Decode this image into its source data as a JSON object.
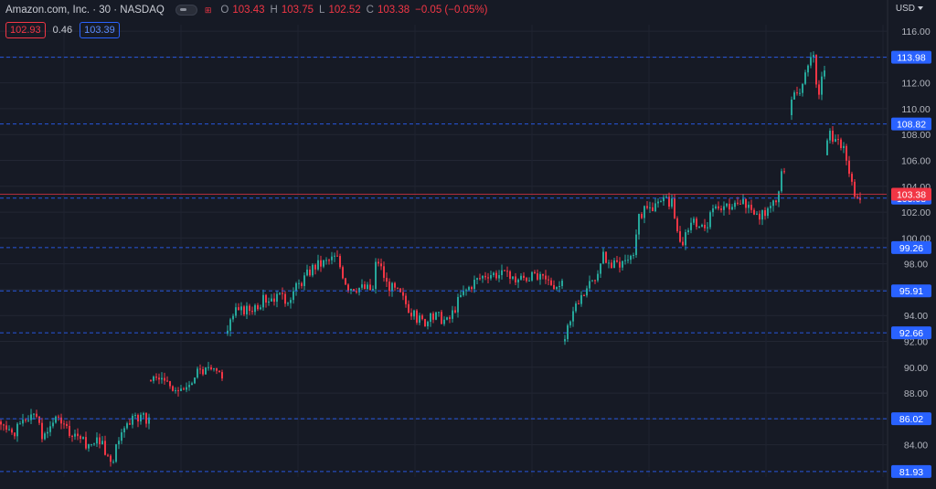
{
  "header": {
    "symbol": "Amazon.com, Inc. · 30 · NASDAQ",
    "ohlc": [
      {
        "k": "O",
        "v": "103.43"
      },
      {
        "k": "H",
        "v": "103.75"
      },
      {
        "k": "L",
        "v": "102.52"
      },
      {
        "k": "C",
        "v": "103.38"
      }
    ],
    "change": "−0.05 (−0.05%)",
    "bid": "102.93",
    "spread": "0.46",
    "ask": "103.39",
    "currency": "USD"
  },
  "colors": {
    "background": "#161a25",
    "up": "#26a69a",
    "down": "#f23645",
    "level_line": "#2962ff",
    "level_label": "#2962ff"
  },
  "chart_data": {
    "type": "candlestick",
    "y_range": [
      81.5,
      116.5
    ],
    "y_ticks": [
      84,
      86,
      88,
      90,
      92,
      94,
      96,
      98,
      100,
      102,
      104,
      106,
      108,
      110,
      112,
      114,
      116
    ],
    "horizontal_levels": [
      113.98,
      108.82,
      103.08,
      99.26,
      95.91,
      92.66,
      86.02,
      81.93
    ],
    "last_price": 103.38,
    "segments": [
      {
        "anchors": [
          [
            0,
            85.8
          ],
          [
            10,
            84.9
          ],
          [
            22,
            85.2
          ],
          [
            38,
            86.7
          ],
          [
            50,
            84.5
          ],
          [
            65,
            86.2
          ],
          [
            80,
            84.6
          ],
          [
            95,
            84.1
          ],
          [
            112,
            84.5
          ],
          [
            125,
            82.3
          ],
          [
            132,
            84.6
          ],
          [
            150,
            86.2
          ],
          [
            162,
            86.0
          ]
        ],
        "seed": 1
      },
      {
        "anchors": [
          [
            164,
            89.0
          ],
          [
            178,
            89.2
          ],
          [
            192,
            88.5
          ],
          [
            205,
            88.0
          ],
          [
            215,
            89.6
          ],
          [
            230,
            89.7
          ],
          [
            243,
            89.5
          ]
        ],
        "seed": 2
      },
      {
        "anchors": [
          [
            248,
            92.6
          ],
          [
            258,
            94.2
          ],
          [
            275,
            94.5
          ],
          [
            290,
            95.2
          ],
          [
            300,
            95.5
          ],
          [
            315,
            95.2
          ],
          [
            330,
            96.5
          ],
          [
            345,
            97.8
          ],
          [
            360,
            98.2
          ],
          [
            370,
            98.6
          ],
          [
            382,
            96.3
          ],
          [
            395,
            96.2
          ],
          [
            410,
            96.0
          ],
          [
            414,
            98.6
          ],
          [
            425,
            96.5
          ],
          [
            440,
            95.6
          ],
          [
            455,
            94.0
          ],
          [
            465,
            93.5
          ],
          [
            480,
            94.0
          ],
          [
            492,
            93.5
          ],
          [
            505,
            95.4
          ],
          [
            520,
            96.6
          ],
          [
            535,
            97.3
          ],
          [
            550,
            97.2
          ],
          [
            565,
            96.8
          ],
          [
            580,
            97.0
          ],
          [
            595,
            96.8
          ],
          [
            615,
            96.3
          ]
        ],
        "seed": 3
      },
      {
        "anchors": [
          [
            617,
            92.0
          ],
          [
            630,
            94.5
          ],
          [
            645,
            96.1
          ],
          [
            655,
            97.0
          ],
          [
            660,
            98.8
          ],
          [
            670,
            97.8
          ],
          [
            685,
            98.3
          ],
          [
            695,
            99.0
          ],
          [
            700,
            101.7
          ],
          [
            715,
            102.4
          ],
          [
            730,
            102.8
          ],
          [
            737,
            102.9
          ],
          [
            742,
            100.9
          ],
          [
            748,
            99.6
          ],
          [
            760,
            101.2
          ],
          [
            775,
            100.8
          ],
          [
            780,
            102.5
          ],
          [
            795,
            102.5
          ],
          [
            810,
            102.4
          ],
          [
            820,
            102.8
          ],
          [
            830,
            101.6
          ],
          [
            845,
            102.2
          ],
          [
            853,
            103.2
          ],
          [
            859,
            105.5
          ]
        ],
        "seed": 4
      },
      {
        "anchors": [
          [
            865,
            109.5
          ],
          [
            872,
            111.5
          ],
          [
            880,
            111.6
          ],
          [
            886,
            113.5
          ],
          [
            892,
            113.8
          ],
          [
            897,
            110.2
          ],
          [
            902,
            112.8
          ]
        ],
        "seed": 5
      },
      {
        "anchors": [
          [
            904,
            106.4
          ],
          [
            910,
            108.3
          ],
          [
            918,
            107.2
          ],
          [
            923,
            107.2
          ],
          [
            930,
            105.6
          ],
          [
            936,
            103.6
          ],
          [
            942,
            103.4
          ]
        ],
        "seed": 6
      }
    ]
  }
}
